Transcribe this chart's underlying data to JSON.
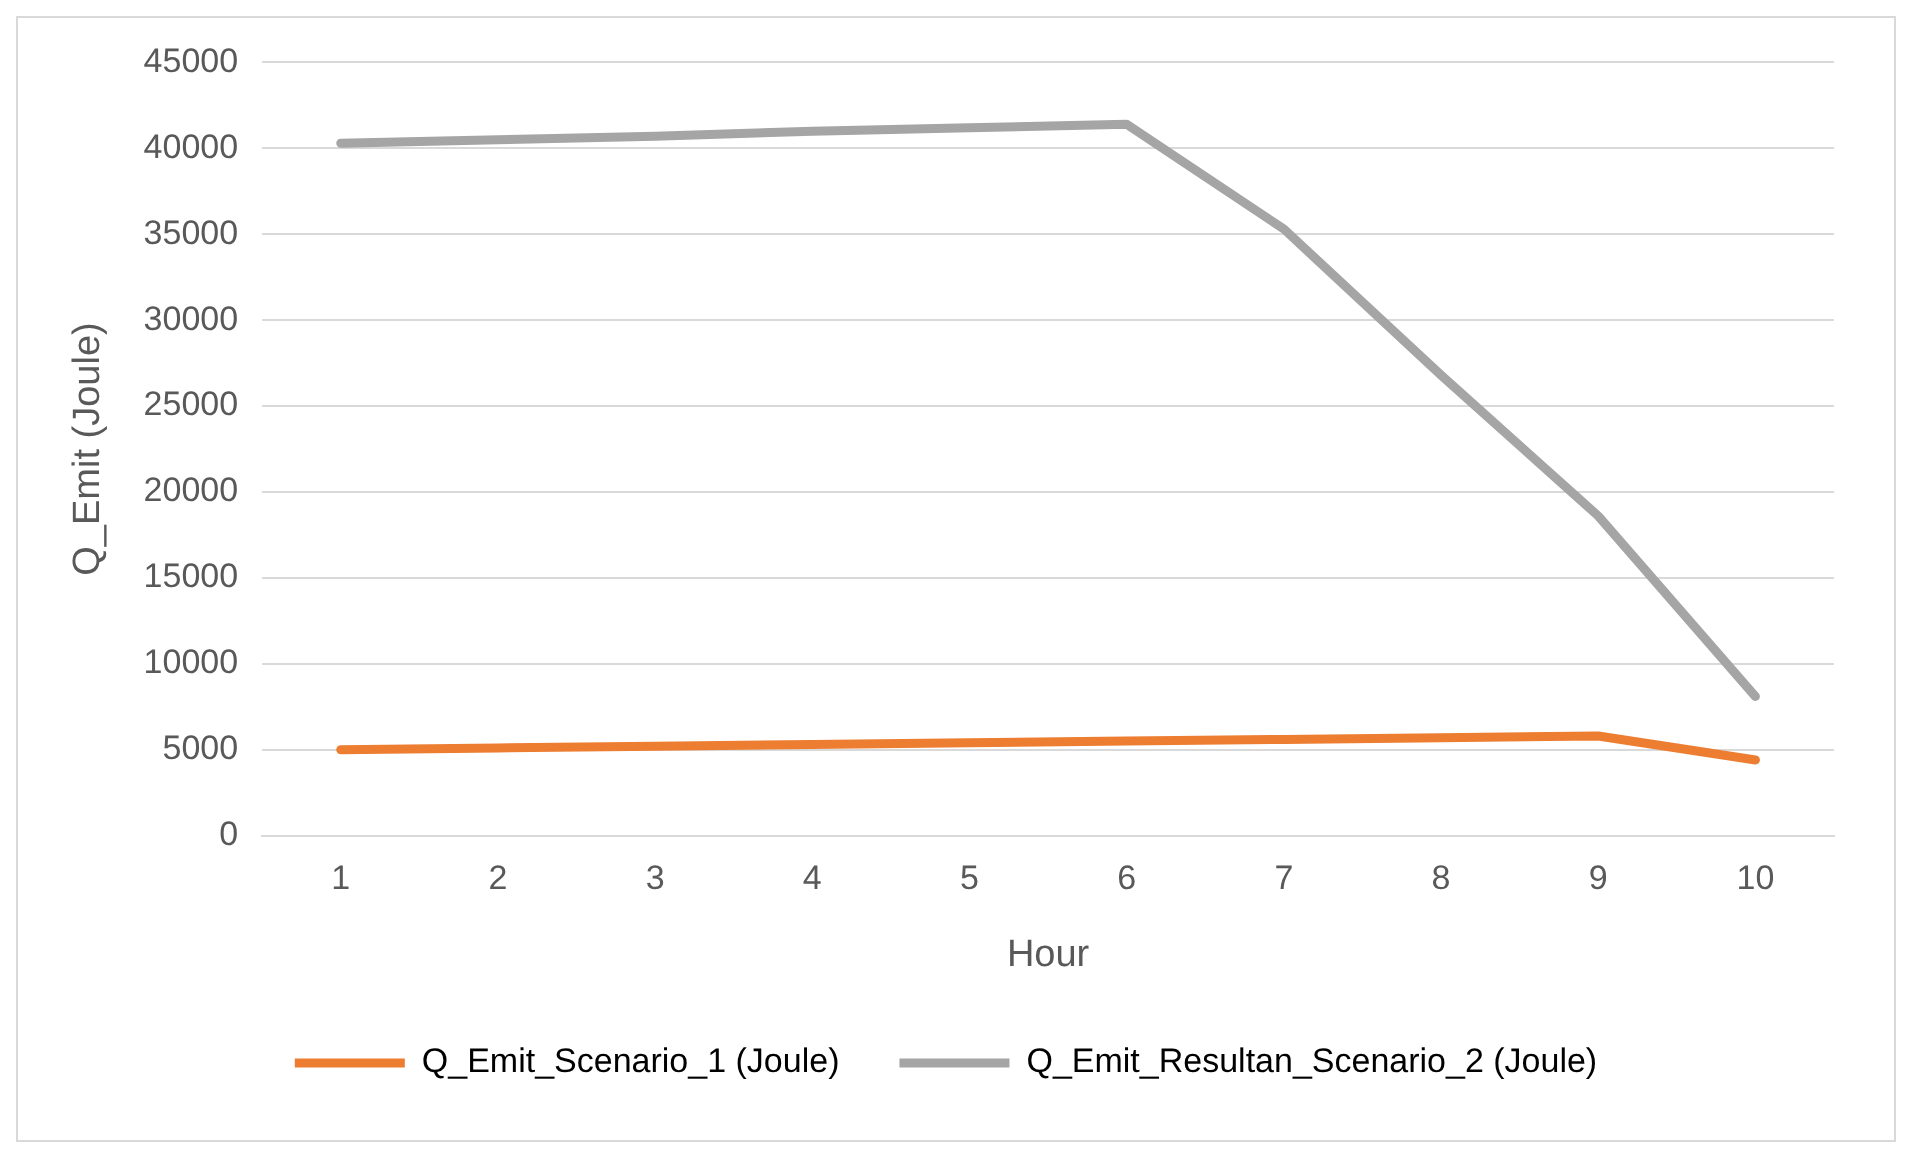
{
  "chart_data": {
    "type": "line",
    "xlabel": "Hour",
    "ylabel": "Q_Emit (Joule)",
    "categories": [
      "1",
      "2",
      "3",
      "4",
      "5",
      "6",
      "7",
      "8",
      "9",
      "10"
    ],
    "series": [
      {
        "name": "Q_Emit_Scenario_1 (Joule)",
        "color": "#ed7d31",
        "values": [
          5000,
          5100,
          5200,
          5300,
          5400,
          5500,
          5600,
          5700,
          5800,
          4400
        ]
      },
      {
        "name": "Q_Emit_Resultan_Scenario_2 (Joule)",
        "color": "#a5a5a5",
        "values": [
          40300,
          40500,
          40700,
          41000,
          41200,
          41400,
          35300,
          26800,
          18600,
          8100
        ]
      }
    ],
    "ylim": [
      0,
      45000
    ],
    "yticks": [
      0,
      5000,
      10000,
      15000,
      20000,
      25000,
      30000,
      35000,
      40000,
      45000
    ],
    "grid": "y",
    "legend": "bottom",
    "marker": "none",
    "line_style": "solid"
  }
}
